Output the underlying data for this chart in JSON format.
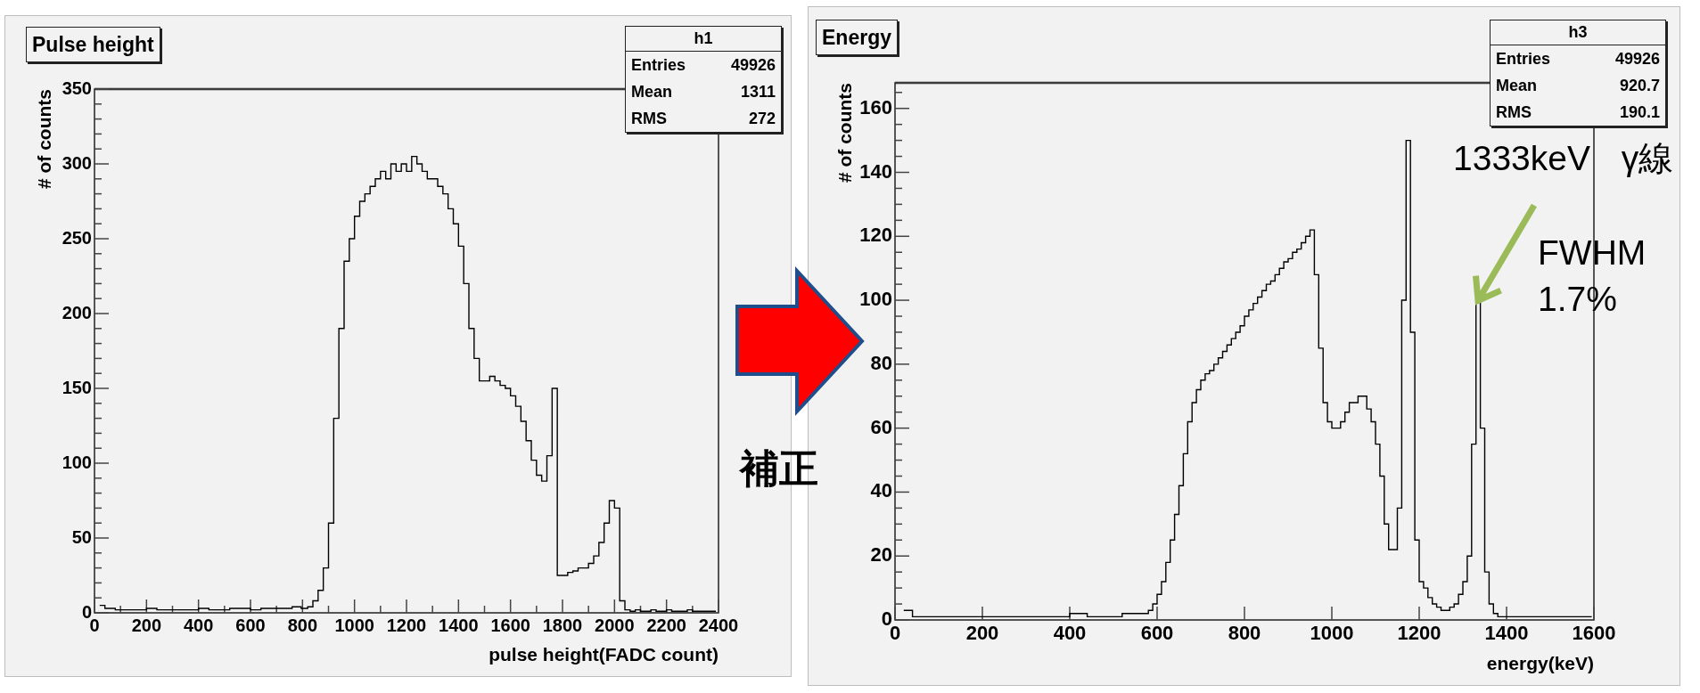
{
  "chart_data": [
    {
      "type": "step",
      "title": "Pulse height",
      "xlabel": "pulse height(FADC count)",
      "ylabel": "# of counts",
      "color": "#000000",
      "x": [
        20,
        60,
        100,
        140,
        180,
        220,
        260,
        300,
        340,
        380,
        420,
        460,
        500,
        540,
        580,
        620,
        660,
        700,
        740,
        780,
        810,
        830,
        850,
        870,
        890,
        910,
        930,
        950,
        970,
        990,
        1010,
        1030,
        1050,
        1070,
        1090,
        1110,
        1130,
        1150,
        1170,
        1190,
        1210,
        1230,
        1250,
        1270,
        1290,
        1310,
        1330,
        1350,
        1370,
        1390,
        1410,
        1430,
        1450,
        1470,
        1490,
        1510,
        1530,
        1550,
        1570,
        1590,
        1610,
        1630,
        1650,
        1670,
        1690,
        1710,
        1730,
        1750,
        1770,
        1790,
        1810,
        1830,
        1850,
        1870,
        1890,
        1910,
        1930,
        1950,
        1970,
        1990,
        2010,
        2030,
        2050,
        2070,
        2090,
        2110,
        2130,
        2150,
        2170,
        2190,
        2210,
        2230,
        2250,
        2270,
        2290,
        2310,
        2330,
        2350,
        2370,
        2390
      ],
      "values": [
        5,
        3,
        2,
        2,
        2,
        3,
        2,
        2,
        2,
        2,
        3,
        2,
        2,
        3,
        3,
        2,
        3,
        3,
        3,
        4,
        3,
        4,
        8,
        15,
        30,
        60,
        130,
        190,
        235,
        250,
        265,
        275,
        280,
        285,
        290,
        295,
        290,
        300,
        295,
        300,
        295,
        305,
        300,
        295,
        290,
        290,
        285,
        280,
        270,
        260,
        245,
        220,
        190,
        170,
        155,
        155,
        158,
        155,
        152,
        150,
        145,
        138,
        128,
        115,
        102,
        92,
        88,
        105,
        150,
        25,
        25,
        27,
        28,
        30,
        30,
        33,
        38,
        47,
        60,
        75,
        70,
        8,
        2,
        1,
        2,
        1,
        1,
        2,
        1,
        1,
        2,
        1,
        1,
        1,
        2,
        1,
        1,
        1,
        1,
        1
      ],
      "xlim": [
        0,
        2400
      ],
      "ylim": [
        0,
        350
      ],
      "xticks": [
        0,
        {
          "value": 100,
          "label": null
        },
        200,
        {
          "value": 300,
          "label": null
        },
        400,
        {
          "value": 500,
          "label": null
        },
        600,
        {
          "value": 700,
          "label": null
        },
        800,
        {
          "value": 900,
          "label": null
        },
        1000,
        {
          "value": 1100,
          "label": null
        },
        1200,
        {
          "value": 1300,
          "label": null
        },
        1400,
        {
          "value": 1500,
          "label": null
        },
        1600,
        {
          "value": 1700,
          "label": null
        },
        1800,
        {
          "value": 1900,
          "label": null
        },
        2000,
        {
          "value": 2100,
          "label": null
        },
        2200,
        {
          "value": 2300,
          "label": null
        },
        2400
      ],
      "yticks": [
        0,
        {
          "value": 10,
          "label": null
        },
        {
          "value": 20,
          "label": null
        },
        {
          "value": 30,
          "label": null
        },
        {
          "value": 40,
          "label": null
        },
        50,
        {
          "value": 60,
          "label": null
        },
        {
          "value": 70,
          "label": null
        },
        {
          "value": 80,
          "label": null
        },
        {
          "value": 90,
          "label": null
        },
        100,
        {
          "value": 110,
          "label": null
        },
        {
          "value": 120,
          "label": null
        },
        {
          "value": 130,
          "label": null
        },
        {
          "value": 140,
          "label": null
        },
        150,
        {
          "value": 160,
          "label": null
        },
        {
          "value": 170,
          "label": null
        },
        {
          "value": 180,
          "label": null
        },
        {
          "value": 190,
          "label": null
        },
        200,
        {
          "value": 210,
          "label": null
        },
        {
          "value": 220,
          "label": null
        },
        {
          "value": 230,
          "label": null
        },
        {
          "value": 240,
          "label": null
        },
        250,
        {
          "value": 260,
          "label": null
        },
        {
          "value": 270,
          "label": null
        },
        {
          "value": 280,
          "label": null
        },
        {
          "value": 290,
          "label": null
        },
        300,
        {
          "value": 310,
          "label": null
        },
        {
          "value": 320,
          "label": null
        },
        {
          "value": 330,
          "label": null
        },
        {
          "value": 340,
          "label": null
        },
        350
      ],
      "annotations": [
        "h1",
        "Entries 49926",
        "Mean 1311",
        "RMS 272",
        "補正"
      ]
    },
    {
      "type": "step",
      "title": "Energy",
      "xlabel": "energy(keV)",
      "ylabel": "# of counts",
      "color": "#000000",
      "x": [
        20,
        60,
        100,
        140,
        180,
        220,
        260,
        300,
        340,
        380,
        420,
        460,
        500,
        540,
        565,
        575,
        585,
        595,
        605,
        615,
        625,
        635,
        645,
        655,
        665,
        675,
        685,
        695,
        705,
        715,
        725,
        735,
        745,
        755,
        765,
        775,
        785,
        795,
        805,
        815,
        825,
        835,
        845,
        855,
        865,
        875,
        885,
        895,
        905,
        915,
        925,
        935,
        945,
        955,
        965,
        975,
        985,
        995,
        1005,
        1015,
        1025,
        1035,
        1045,
        1055,
        1065,
        1075,
        1085,
        1095,
        1105,
        1115,
        1125,
        1135,
        1145,
        1155,
        1165,
        1175,
        1185,
        1195,
        1205,
        1215,
        1225,
        1235,
        1245,
        1255,
        1265,
        1275,
        1285,
        1295,
        1305,
        1315,
        1325,
        1335,
        1345,
        1355,
        1365,
        1375,
        1385,
        1395,
        1405,
        1415,
        1425,
        1435,
        1445,
        1455,
        1465,
        1475,
        1485,
        1495,
        1505,
        1515,
        1525,
        1535,
        1545,
        1555,
        1565,
        1575,
        1585,
        1595
      ],
      "values": [
        3,
        1,
        1,
        1,
        1,
        1,
        1,
        1,
        1,
        1,
        2,
        1,
        1,
        2,
        2,
        2,
        3,
        5,
        8,
        12,
        18,
        25,
        33,
        42,
        52,
        62,
        68,
        72,
        75,
        77,
        78,
        80,
        82,
        84,
        86,
        88,
        90,
        92,
        95,
        97,
        99,
        101,
        103,
        105,
        106,
        108,
        110,
        112,
        113,
        115,
        116,
        118,
        120,
        122,
        108,
        85,
        68,
        62,
        60,
        60,
        62,
        65,
        68,
        68,
        70,
        70,
        66,
        62,
        55,
        45,
        30,
        22,
        22,
        35,
        100,
        150,
        90,
        25,
        12,
        10,
        7,
        5,
        4,
        3,
        3,
        4,
        5,
        8,
        12,
        20,
        55,
        100,
        60,
        15,
        5,
        2,
        1,
        1,
        1,
        1,
        1,
        1,
        1,
        1,
        1,
        1,
        1,
        1,
        1,
        1,
        1,
        1,
        1,
        1,
        1,
        1,
        1,
        1
      ],
      "xlim": [
        0,
        1600
      ],
      "ylim": [
        0,
        168
      ],
      "xticks": [
        0,
        200,
        400,
        600,
        800,
        1000,
        1200,
        1400,
        1600
      ],
      "yticks": [
        0,
        {
          "value": 5,
          "label": null
        },
        {
          "value": 10,
          "label": null
        },
        {
          "value": 15,
          "label": null
        },
        20,
        {
          "value": 25,
          "label": null
        },
        {
          "value": 30,
          "label": null
        },
        {
          "value": 35,
          "label": null
        },
        40,
        {
          "value": 45,
          "label": null
        },
        {
          "value": 50,
          "label": null
        },
        {
          "value": 55,
          "label": null
        },
        60,
        {
          "value": 65,
          "label": null
        },
        {
          "value": 70,
          "label": null
        },
        {
          "value": 75,
          "label": null
        },
        80,
        {
          "value": 85,
          "label": null
        },
        {
          "value": 90,
          "label": null
        },
        {
          "value": 95,
          "label": null
        },
        100,
        {
          "value": 105,
          "label": null
        },
        {
          "value": 110,
          "label": null
        },
        {
          "value": 115,
          "label": null
        },
        120,
        {
          "value": 125,
          "label": null
        },
        {
          "value": 130,
          "label": null
        },
        {
          "value": 135,
          "label": null
        },
        140,
        {
          "value": 145,
          "label": null
        },
        {
          "value": 150,
          "label": null
        },
        {
          "value": 155,
          "label": null
        },
        160,
        {
          "value": 165,
          "label": null
        }
      ],
      "annotations": [
        "h3",
        "Entries 49926",
        "Mean 920.7",
        "RMS 190.1",
        {
          "text": "1333keV γ線",
          "x": 1335,
          "y": 100
        },
        "FWHM 1.7%"
      ]
    }
  ]
}
